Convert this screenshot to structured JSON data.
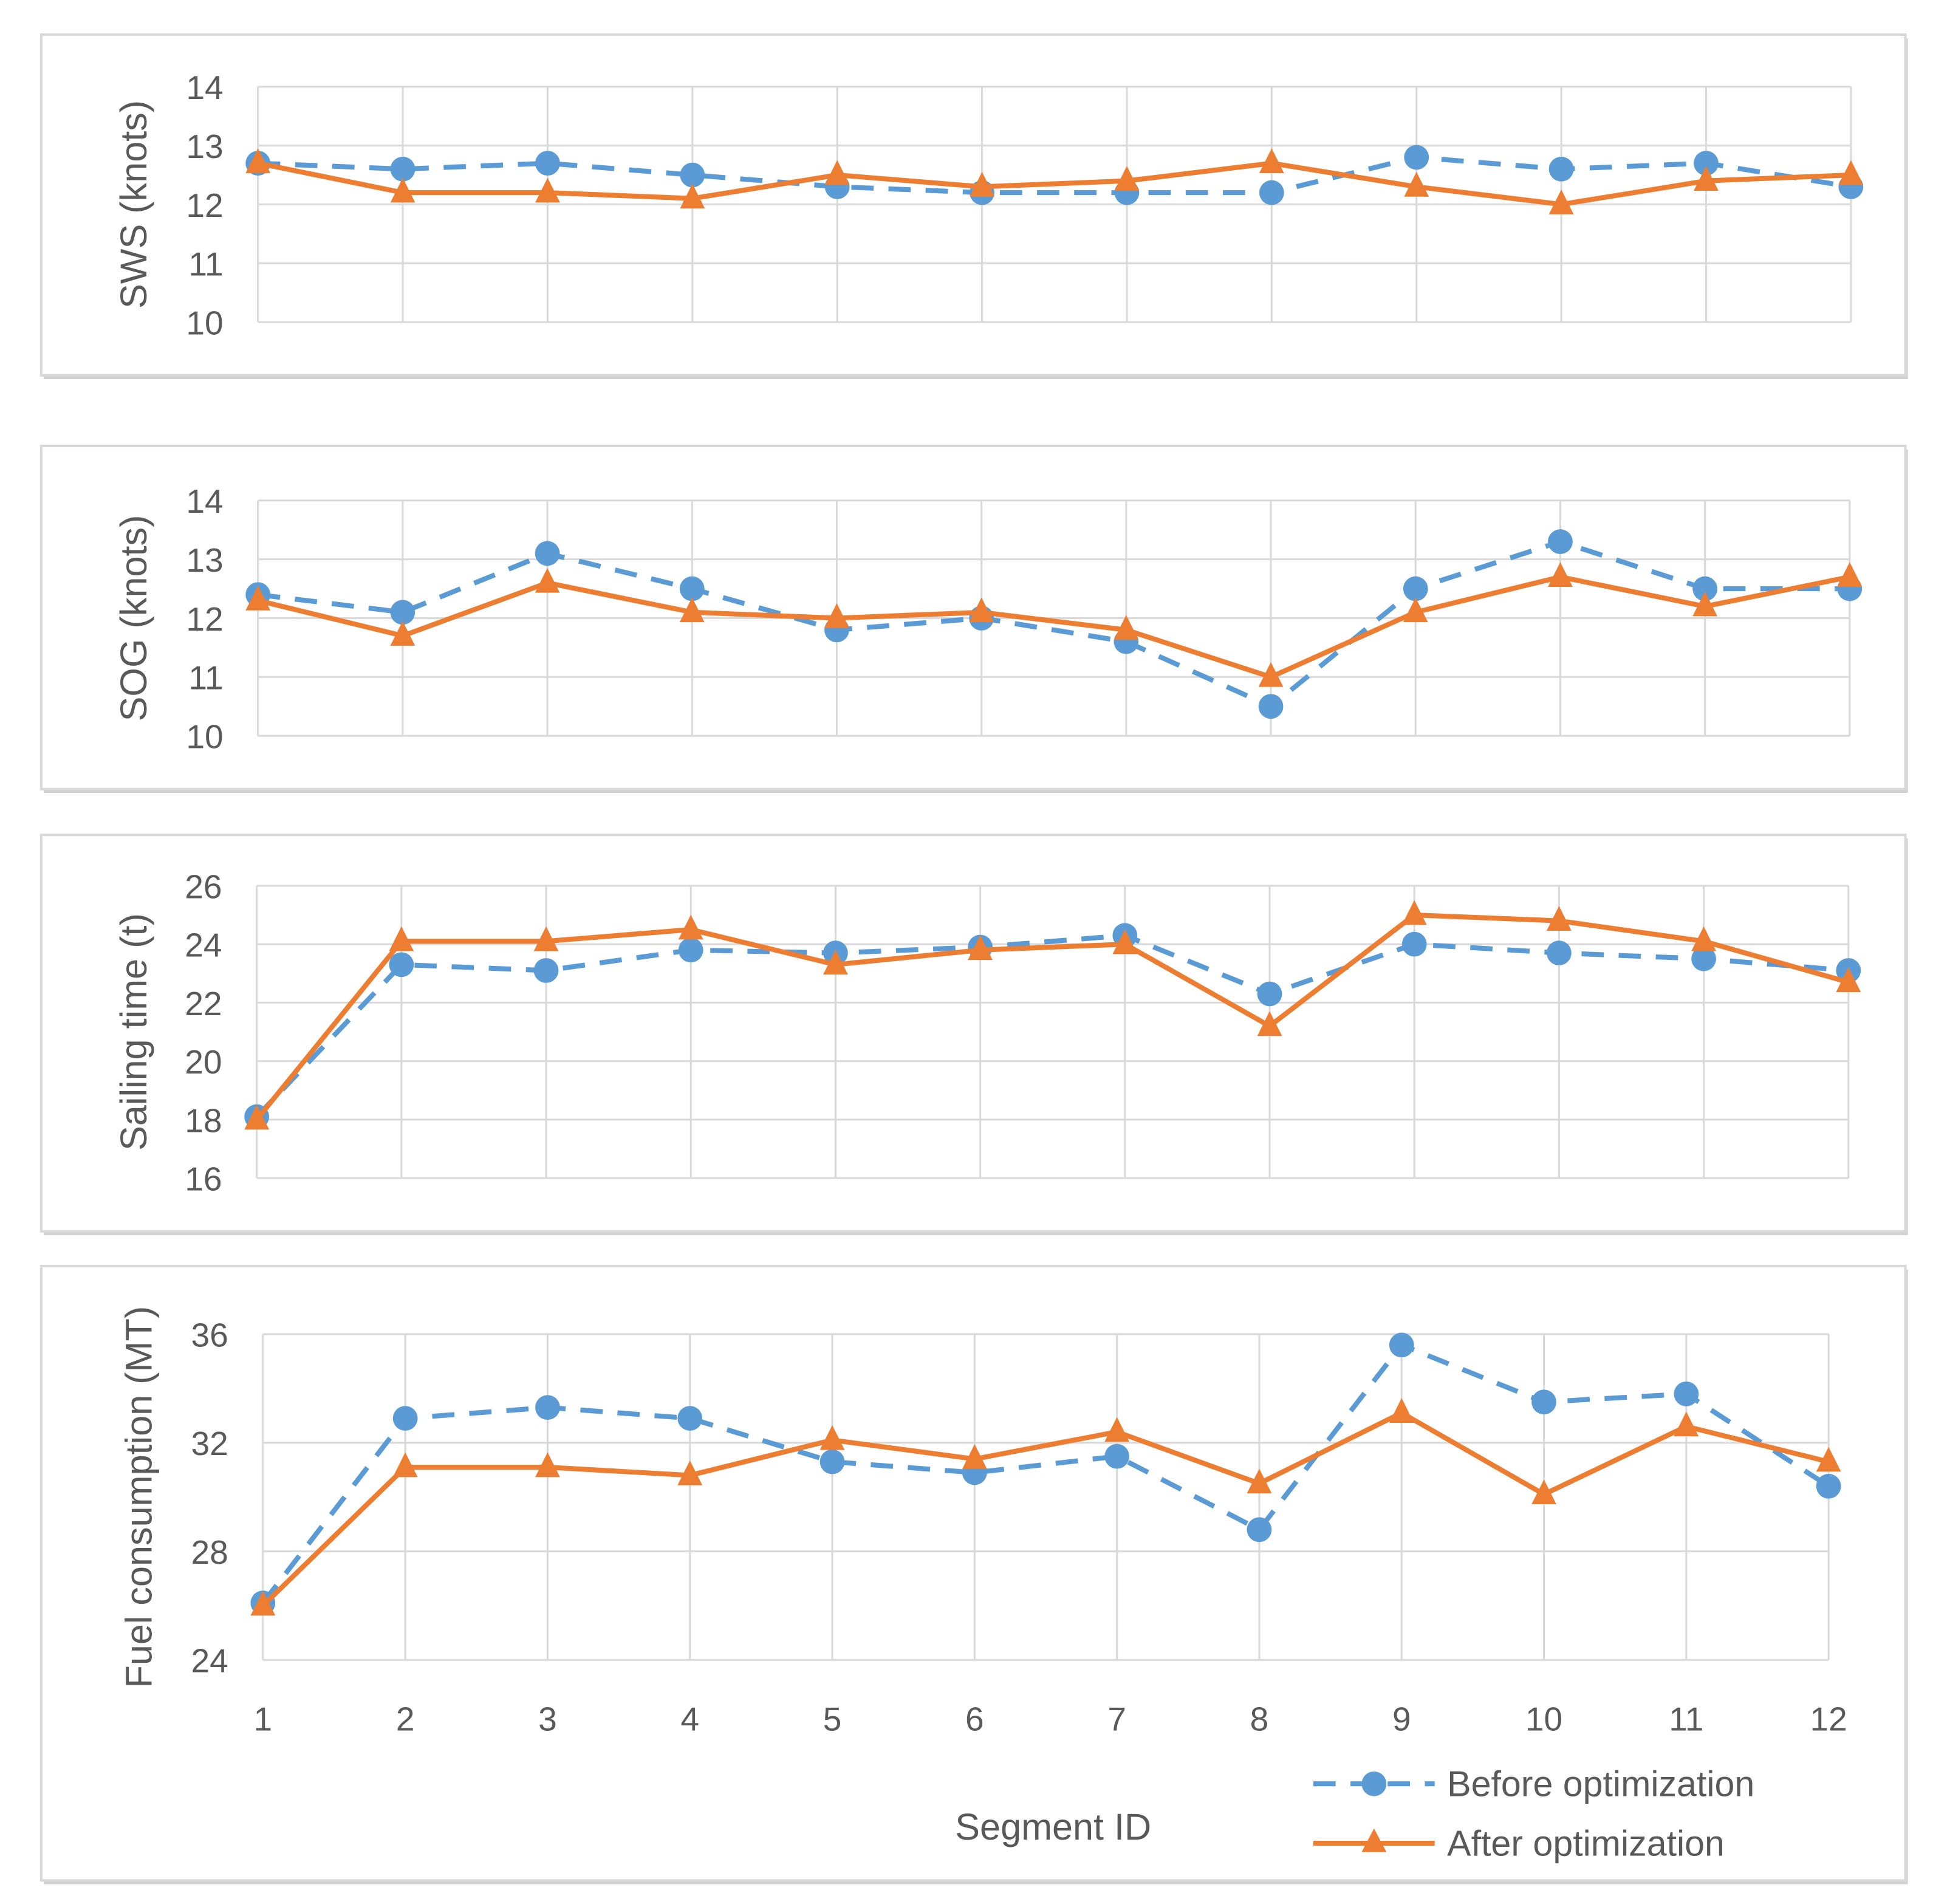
{
  "chart_data": [
    {
      "type": "line",
      "title": "",
      "xlabel": "",
      "ylabel": "SWS (knots)",
      "ylim": [
        10,
        14
      ],
      "yticks": [
        "10",
        "11",
        "12",
        "13",
        "14"
      ],
      "categories": [
        "1",
        "2",
        "3",
        "4",
        "5",
        "6",
        "7",
        "8",
        "9",
        "10",
        "11",
        "12"
      ],
      "series": [
        {
          "name": "Before optimization",
          "values": [
            12.7,
            12.6,
            12.7,
            12.5,
            12.3,
            12.2,
            12.2,
            12.2,
            12.8,
            12.6,
            12.7,
            12.3
          ]
        },
        {
          "name": "After optimization",
          "values": [
            12.7,
            12.2,
            12.2,
            12.1,
            12.5,
            12.3,
            12.4,
            12.7,
            12.3,
            12.0,
            12.4,
            12.5
          ]
        }
      ]
    },
    {
      "type": "line",
      "title": "",
      "xlabel": "",
      "ylabel": "SOG (knots)",
      "ylim": [
        10,
        14
      ],
      "yticks": [
        "10",
        "11",
        "12",
        "13",
        "14"
      ],
      "categories": [
        "1",
        "2",
        "3",
        "4",
        "5",
        "6",
        "7",
        "8",
        "9",
        "10",
        "11",
        "12"
      ],
      "series": [
        {
          "name": "Before optimization",
          "values": [
            12.4,
            12.1,
            13.1,
            12.5,
            11.8,
            12.0,
            11.6,
            10.5,
            12.5,
            13.3,
            12.5,
            12.5
          ]
        },
        {
          "name": "After optimization",
          "values": [
            12.3,
            11.7,
            12.6,
            12.1,
            12.0,
            12.1,
            11.8,
            11.0,
            12.1,
            12.7,
            12.2,
            12.7
          ]
        }
      ]
    },
    {
      "type": "line",
      "title": "",
      "xlabel": "",
      "ylabel": "Sailing time (t)",
      "ylim": [
        16,
        26
      ],
      "yticks": [
        "16",
        "18",
        "20",
        "22",
        "24",
        "26"
      ],
      "categories": [
        "1",
        "2",
        "3",
        "4",
        "5",
        "6",
        "7",
        "8",
        "9",
        "10",
        "11",
        "12"
      ],
      "series": [
        {
          "name": "Before optimization",
          "values": [
            18.1,
            23.3,
            23.1,
            23.8,
            23.7,
            23.9,
            24.3,
            22.3,
            24.0,
            23.7,
            23.5,
            23.1
          ]
        },
        {
          "name": "After optimization",
          "values": [
            18.0,
            24.1,
            24.1,
            24.5,
            23.3,
            23.8,
            24.0,
            21.2,
            25.0,
            24.8,
            24.1,
            22.7
          ]
        }
      ]
    },
    {
      "type": "line",
      "title": "",
      "xlabel": "Segment ID",
      "ylabel": "Fuel consumption (MT)",
      "ylim": [
        24,
        36
      ],
      "yticks": [
        "24",
        "28",
        "32",
        "36"
      ],
      "categories": [
        "1",
        "2",
        "3",
        "4",
        "5",
        "6",
        "7",
        "8",
        "9",
        "10",
        "11",
        "12"
      ],
      "series": [
        {
          "name": "Before optimization",
          "values": [
            26.1,
            32.9,
            33.3,
            32.9,
            31.3,
            30.9,
            31.5,
            28.8,
            35.6,
            33.5,
            33.8,
            30.4
          ]
        },
        {
          "name": "After optimization",
          "values": [
            26.0,
            31.1,
            31.1,
            30.8,
            32.1,
            31.4,
            32.4,
            30.5,
            33.1,
            30.1,
            32.6,
            31.3
          ]
        }
      ]
    }
  ],
  "legend": {
    "position": "bottom-right",
    "items": [
      {
        "label": "Before optimization",
        "color": "#5B9BD5",
        "marker": "circle",
        "style": "dashed"
      },
      {
        "label": "After optimization",
        "color": "#ED7D31",
        "marker": "triangle",
        "style": "solid"
      }
    ]
  },
  "colors": {
    "before": "#5B9BD5",
    "after": "#ED7D31",
    "grid": "#D9D9D9",
    "text": "#595959"
  }
}
